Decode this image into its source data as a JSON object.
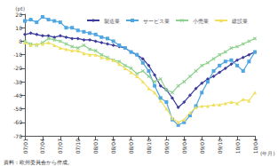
{
  "chart_data": {
    "type": "line",
    "ylabel": "(pt)",
    "xlabel": "(年月)",
    "annotation": "資料：欧州委員会から作成。",
    "categories": [
      "07/01",
      null,
      null,
      "07/04",
      null,
      null,
      "07/07",
      null,
      null,
      "07/10",
      null,
      null,
      "08/01",
      null,
      null,
      "08/04",
      null,
      null,
      "08/07",
      null,
      null,
      "08/10",
      null,
      null,
      "09/01",
      null,
      null,
      "09/04",
      null,
      null,
      "09/07",
      null,
      null,
      "09/10",
      null,
      null,
      "10/01",
      null,
      null,
      "10/04"
    ],
    "series": [
      {
        "name": "製造業",
        "color": "#3c3c9c",
        "marker": "diamond",
        "values": [
          5,
          6,
          5,
          4,
          4,
          3,
          4,
          3,
          2,
          2,
          1,
          1,
          0,
          -1,
          -2,
          -3,
          -4,
          -5,
          -8,
          -10,
          -13,
          -18,
          -25,
          -33,
          -36,
          -42,
          -49,
          -45,
          -40,
          -35,
          -31,
          -28,
          -26,
          -23,
          -20,
          -17,
          -14,
          -12,
          -10,
          -8
        ]
      },
      {
        "name": "サービス業",
        "color": "#4fa6e0",
        "marker": "square",
        "values": [
          15,
          16,
          14,
          18,
          16,
          15,
          14,
          10,
          10,
          8,
          7,
          6,
          5,
          3,
          2,
          0,
          -3,
          -5,
          -8,
          -10,
          -16,
          -22,
          -33,
          -42,
          -45,
          -58,
          -62,
          -60,
          -55,
          -48,
          -38,
          -30,
          -22,
          -18,
          -15,
          -14,
          -18,
          -22,
          -15,
          -8
        ]
      },
      {
        "name": "小売業",
        "color": "#8fd18f",
        "marker": "x",
        "values": [
          0,
          -2,
          -3,
          -1,
          2,
          1,
          0,
          -2,
          -4,
          -5,
          -3,
          -6,
          -7,
          -10,
          -12,
          -14,
          -15,
          -18,
          -20,
          -24,
          -22,
          -26,
          -30,
          -28,
          -36,
          -38,
          -33,
          -30,
          -26,
          -22,
          -18,
          -16,
          -13,
          -10,
          -8,
          -5,
          -4,
          -2,
          0,
          2
        ]
      },
      {
        "name": "建設業",
        "color": "#f0e060",
        "marker": "triangle",
        "values": [
          -1,
          -3,
          -2,
          -2,
          -1,
          -3,
          -5,
          -6,
          -7,
          -7,
          -9,
          -10,
          -10,
          -12,
          -13,
          -14,
          -17,
          -20,
          -23,
          -26,
          -30,
          -35,
          -38,
          -44,
          -50,
          -57,
          -60,
          -58,
          -53,
          -49,
          -48,
          -48,
          -47,
          -47,
          -46,
          -45,
          -46,
          -43,
          -44,
          -38
        ]
      }
    ],
    "ylim": [
      -70,
      20
    ],
    "yticks": [
      20,
      10,
      0,
      -10,
      -20,
      -30,
      -40,
      -50,
      -60,
      -70
    ],
    "grid": false,
    "legend": "top"
  }
}
